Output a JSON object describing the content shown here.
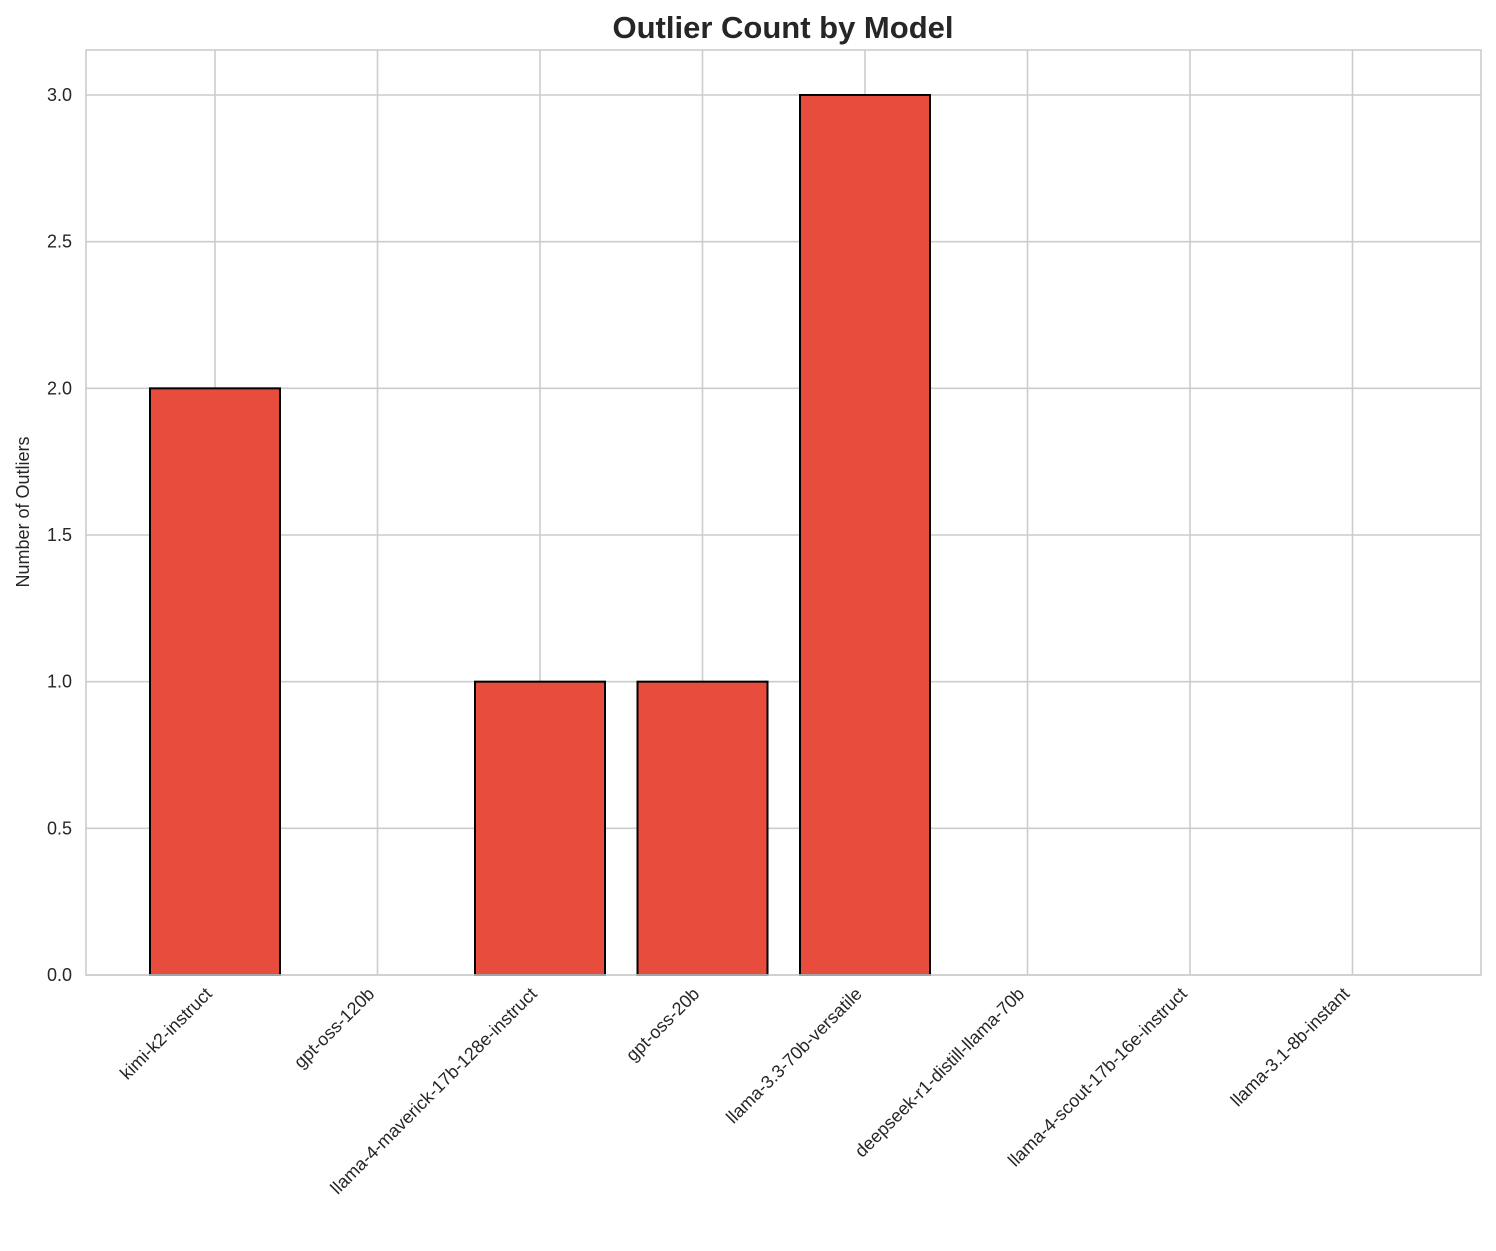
{
  "chart_data": {
    "type": "bar",
    "title": "Outlier Count by Model",
    "xlabel": "",
    "ylabel": "Number of Outliers",
    "categories": [
      "kimi-k2-instruct",
      "gpt-oss-120b",
      "llama-4-maverick-17b-128e-instruct",
      "gpt-oss-20b",
      "llama-3.3-70b-versatile",
      "deepseek-r1-distill-llama-70b",
      "llama-4-scout-17b-16e-instruct",
      "llama-3.1-8b-instant"
    ],
    "values": [
      2,
      0,
      1,
      1,
      3,
      0,
      0,
      0
    ],
    "ylim": [
      0,
      3.15
    ],
    "yticks": [
      0.0,
      0.5,
      1.0,
      1.5,
      2.0,
      2.5,
      3.0
    ],
    "ytick_labels": [
      "0.0",
      "0.5",
      "1.0",
      "1.5",
      "2.0",
      "2.5",
      "3.0"
    ],
    "bar_color": "#e74c3c",
    "bar_edge_color": "#000000",
    "grid": true,
    "legend": "none"
  }
}
